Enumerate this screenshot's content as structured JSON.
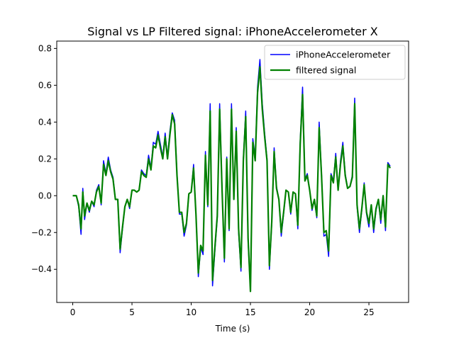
{
  "chart_data": {
    "type": "line",
    "title": "Signal vs LP Filtered signal: iPhoneAccelerometer X",
    "xlabel": "Time (s)",
    "ylabel": "",
    "xlim": [
      -1.35,
      28.35
    ],
    "ylim": [
      -0.58,
      0.84
    ],
    "xticks": [
      0,
      5,
      10,
      15,
      20,
      25
    ],
    "yticks": [
      -0.4,
      -0.2,
      0.0,
      0.2,
      0.4,
      0.6,
      0.8
    ],
    "xtick_labels": [
      "0",
      "5",
      "10",
      "15",
      "20",
      "25"
    ],
    "ytick_labels": [
      "−0.4",
      "−0.2",
      "0.0",
      "0.2",
      "0.4",
      "0.6",
      "0.8"
    ],
    "grid": false,
    "legend_position": "upper right",
    "series": [
      {
        "name": "iPhoneAccelerometer",
        "color": "#0000ff",
        "points": [
          [
            0,
            0
          ],
          [
            0.3,
            0.0
          ],
          [
            0.5,
            -0.06
          ],
          [
            0.7,
            -0.21
          ],
          [
            0.85,
            0.04
          ],
          [
            1.0,
            -0.13
          ],
          [
            1.2,
            -0.04
          ],
          [
            1.4,
            -0.09
          ],
          [
            1.6,
            -0.03
          ],
          [
            1.8,
            -0.06
          ],
          [
            2.0,
            0.03
          ],
          [
            2.2,
            0.06
          ],
          [
            2.4,
            -0.05
          ],
          [
            2.6,
            0.19
          ],
          [
            2.8,
            0.12
          ],
          [
            3.0,
            0.21
          ],
          [
            3.2,
            0.14
          ],
          [
            3.4,
            0.1
          ],
          [
            3.6,
            -0.02
          ],
          [
            3.8,
            -0.02
          ],
          [
            4.0,
            -0.31
          ],
          [
            4.2,
            -0.18
          ],
          [
            4.4,
            -0.06
          ],
          [
            4.6,
            -0.02
          ],
          [
            4.8,
            -0.07
          ],
          [
            5.0,
            0.03
          ],
          [
            5.2,
            0.03
          ],
          [
            5.4,
            0.02
          ],
          [
            5.6,
            0.03
          ],
          [
            5.8,
            0.14
          ],
          [
            6.0,
            0.12
          ],
          [
            6.2,
            0.11
          ],
          [
            6.4,
            0.22
          ],
          [
            6.6,
            0.15
          ],
          [
            6.8,
            0.29
          ],
          [
            7.0,
            0.28
          ],
          [
            7.2,
            0.35
          ],
          [
            7.4,
            0.28
          ],
          [
            7.6,
            0.21
          ],
          [
            7.8,
            0.34
          ],
          [
            8.0,
            0.21
          ],
          [
            8.2,
            0.35
          ],
          [
            8.4,
            0.45
          ],
          [
            8.6,
            0.41
          ],
          [
            8.8,
            0.12
          ],
          [
            9.0,
            -0.1
          ],
          [
            9.2,
            -0.1
          ],
          [
            9.4,
            -0.22
          ],
          [
            9.6,
            -0.16
          ],
          [
            9.8,
            0.01
          ],
          [
            10.0,
            0.02
          ],
          [
            10.2,
            0.17
          ],
          [
            10.4,
            -0.1
          ],
          [
            10.6,
            -0.44
          ],
          [
            10.8,
            -0.28
          ],
          [
            11.0,
            -0.32
          ],
          [
            11.2,
            0.24
          ],
          [
            11.4,
            -0.06
          ],
          [
            11.6,
            0.5
          ],
          [
            11.8,
            -0.49
          ],
          [
            12.0,
            -0.3
          ],
          [
            12.2,
            -0.12
          ],
          [
            12.4,
            0.5
          ],
          [
            12.6,
            0.05
          ],
          [
            12.8,
            -0.36
          ],
          [
            13.0,
            0.21
          ],
          [
            13.2,
            -0.19
          ],
          [
            13.4,
            0.5
          ],
          [
            13.6,
            -0.02
          ],
          [
            13.8,
            0.37
          ],
          [
            14.0,
            -0.2
          ],
          [
            14.2,
            -0.41
          ],
          [
            14.4,
            0.2
          ],
          [
            14.6,
            0.46
          ],
          [
            14.8,
            -0.25
          ],
          [
            15.0,
            -0.52
          ],
          [
            15.2,
            0.31
          ],
          [
            15.4,
            0.21
          ],
          [
            15.6,
            0.59
          ],
          [
            15.8,
            0.74
          ],
          [
            16.0,
            0.5
          ],
          [
            16.2,
            0.34
          ],
          [
            16.4,
            0.2
          ],
          [
            16.6,
            -0.4
          ],
          [
            16.8,
            -0.15
          ],
          [
            17.0,
            0.26
          ],
          [
            17.2,
            0.05
          ],
          [
            17.4,
            -0.02
          ],
          [
            17.6,
            -0.22
          ],
          [
            17.8,
            -0.1
          ],
          [
            18.0,
            0.03
          ],
          [
            18.2,
            0.02
          ],
          [
            18.4,
            -0.1
          ],
          [
            18.6,
            0.02
          ],
          [
            18.8,
            0.01
          ],
          [
            19.0,
            -0.18
          ],
          [
            19.2,
            0.3
          ],
          [
            19.4,
            0.59
          ],
          [
            19.6,
            0.09
          ],
          [
            19.8,
            0.12
          ],
          [
            20.0,
            0.03
          ],
          [
            20.2,
            -0.08
          ],
          [
            20.4,
            -0.02
          ],
          [
            20.6,
            -0.12
          ],
          [
            20.8,
            0.4
          ],
          [
            21.0,
            0.12
          ],
          [
            21.2,
            -0.22
          ],
          [
            21.4,
            -0.21
          ],
          [
            21.6,
            -0.33
          ],
          [
            21.8,
            0.12
          ],
          [
            22.0,
            0.08
          ],
          [
            22.2,
            0.23
          ],
          [
            22.4,
            0.03
          ],
          [
            22.6,
            0.19
          ],
          [
            22.8,
            0.29
          ],
          [
            23.0,
            0.12
          ],
          [
            23.2,
            0.04
          ],
          [
            23.4,
            0.05
          ],
          [
            23.6,
            0.11
          ],
          [
            23.8,
            0.53
          ],
          [
            24.0,
            -0.06
          ],
          [
            24.2,
            -0.2
          ],
          [
            24.4,
            -0.08
          ],
          [
            24.6,
            0.07
          ],
          [
            24.8,
            -0.1
          ],
          [
            25.0,
            -0.17
          ],
          [
            25.2,
            -0.05
          ],
          [
            25.4,
            -0.2
          ],
          [
            25.6,
            -0.08
          ],
          [
            25.8,
            -0.02
          ],
          [
            26.0,
            -0.15
          ],
          [
            26.2,
            0.0
          ],
          [
            26.4,
            -0.19
          ],
          [
            26.6,
            0.18
          ],
          [
            26.8,
            0.16
          ]
        ]
      },
      {
        "name": "filtered signal",
        "color": "#008000",
        "points": [
          [
            0,
            0
          ],
          [
            0.3,
            0.0
          ],
          [
            0.5,
            -0.05
          ],
          [
            0.7,
            -0.18
          ],
          [
            0.85,
            0.02
          ],
          [
            1.0,
            -0.11
          ],
          [
            1.2,
            -0.04
          ],
          [
            1.4,
            -0.08
          ],
          [
            1.6,
            -0.03
          ],
          [
            1.8,
            -0.05
          ],
          [
            2.0,
            0.02
          ],
          [
            2.2,
            0.05
          ],
          [
            2.4,
            -0.04
          ],
          [
            2.6,
            0.17
          ],
          [
            2.8,
            0.11
          ],
          [
            3.0,
            0.19
          ],
          [
            3.2,
            0.13
          ],
          [
            3.4,
            0.09
          ],
          [
            3.6,
            -0.02
          ],
          [
            3.8,
            -0.02
          ],
          [
            4.0,
            -0.29
          ],
          [
            4.2,
            -0.17
          ],
          [
            4.4,
            -0.06
          ],
          [
            4.6,
            -0.02
          ],
          [
            4.8,
            -0.06
          ],
          [
            5.0,
            0.03
          ],
          [
            5.2,
            0.03
          ],
          [
            5.4,
            0.02
          ],
          [
            5.6,
            0.03
          ],
          [
            5.8,
            0.13
          ],
          [
            6.0,
            0.11
          ],
          [
            6.2,
            0.1
          ],
          [
            6.4,
            0.2
          ],
          [
            6.6,
            0.14
          ],
          [
            6.8,
            0.27
          ],
          [
            7.0,
            0.26
          ],
          [
            7.2,
            0.33
          ],
          [
            7.4,
            0.26
          ],
          [
            7.6,
            0.2
          ],
          [
            7.8,
            0.32
          ],
          [
            8.0,
            0.2
          ],
          [
            8.2,
            0.33
          ],
          [
            8.4,
            0.44
          ],
          [
            8.6,
            0.39
          ],
          [
            8.8,
            0.11
          ],
          [
            9.0,
            -0.09
          ],
          [
            9.2,
            -0.09
          ],
          [
            9.4,
            -0.2
          ],
          [
            9.6,
            -0.15
          ],
          [
            9.8,
            0.01
          ],
          [
            10.0,
            0.02
          ],
          [
            10.2,
            0.15
          ],
          [
            10.4,
            -0.1
          ],
          [
            10.6,
            -0.42
          ],
          [
            10.8,
            -0.27
          ],
          [
            11.0,
            -0.3
          ],
          [
            11.2,
            0.22
          ],
          [
            11.4,
            -0.05
          ],
          [
            11.6,
            0.46
          ],
          [
            11.8,
            -0.46
          ],
          [
            12.0,
            -0.28
          ],
          [
            12.2,
            -0.11
          ],
          [
            12.4,
            0.47
          ],
          [
            12.6,
            0.04
          ],
          [
            12.8,
            -0.34
          ],
          [
            13.0,
            0.2
          ],
          [
            13.2,
            -0.18
          ],
          [
            13.4,
            0.47
          ],
          [
            13.6,
            -0.02
          ],
          [
            13.8,
            0.35
          ],
          [
            14.0,
            -0.18
          ],
          [
            14.2,
            -0.39
          ],
          [
            14.4,
            0.19
          ],
          [
            14.6,
            0.43
          ],
          [
            14.8,
            -0.23
          ],
          [
            15.0,
            -0.52
          ],
          [
            15.2,
            0.29
          ],
          [
            15.4,
            0.19
          ],
          [
            15.6,
            0.56
          ],
          [
            15.8,
            0.7
          ],
          [
            16.0,
            0.47
          ],
          [
            16.2,
            0.32
          ],
          [
            16.4,
            0.19
          ],
          [
            16.6,
            -0.38
          ],
          [
            16.8,
            -0.14
          ],
          [
            17.0,
            0.24
          ],
          [
            17.2,
            0.04
          ],
          [
            17.4,
            -0.02
          ],
          [
            17.6,
            -0.2
          ],
          [
            17.8,
            -0.09
          ],
          [
            18.0,
            0.03
          ],
          [
            18.2,
            0.02
          ],
          [
            18.4,
            -0.09
          ],
          [
            18.6,
            0.02
          ],
          [
            18.8,
            0.01
          ],
          [
            19.0,
            -0.16
          ],
          [
            19.2,
            0.28
          ],
          [
            19.4,
            0.55
          ],
          [
            19.6,
            0.08
          ],
          [
            19.8,
            0.11
          ],
          [
            20.0,
            0.03
          ],
          [
            20.2,
            -0.07
          ],
          [
            20.4,
            -0.02
          ],
          [
            20.6,
            -0.11
          ],
          [
            20.8,
            0.37
          ],
          [
            21.0,
            0.11
          ],
          [
            21.2,
            -0.2
          ],
          [
            21.4,
            -0.19
          ],
          [
            21.6,
            -0.3
          ],
          [
            21.8,
            0.11
          ],
          [
            22.0,
            0.07
          ],
          [
            22.2,
            0.21
          ],
          [
            22.4,
            0.03
          ],
          [
            22.6,
            0.17
          ],
          [
            22.8,
            0.27
          ],
          [
            23.0,
            0.11
          ],
          [
            23.2,
            0.04
          ],
          [
            23.4,
            0.05
          ],
          [
            23.6,
            0.1
          ],
          [
            23.8,
            0.5
          ],
          [
            24.0,
            -0.05
          ],
          [
            24.2,
            -0.18
          ],
          [
            24.4,
            -0.07
          ],
          [
            24.6,
            0.06
          ],
          [
            24.8,
            -0.09
          ],
          [
            25.0,
            -0.15
          ],
          [
            25.2,
            -0.05
          ],
          [
            25.4,
            -0.18
          ],
          [
            25.6,
            -0.07
          ],
          [
            25.8,
            -0.02
          ],
          [
            26.0,
            -0.13
          ],
          [
            26.2,
            0.0
          ],
          [
            26.4,
            -0.17
          ],
          [
            26.6,
            0.17
          ],
          [
            26.8,
            0.15
          ]
        ]
      }
    ]
  }
}
